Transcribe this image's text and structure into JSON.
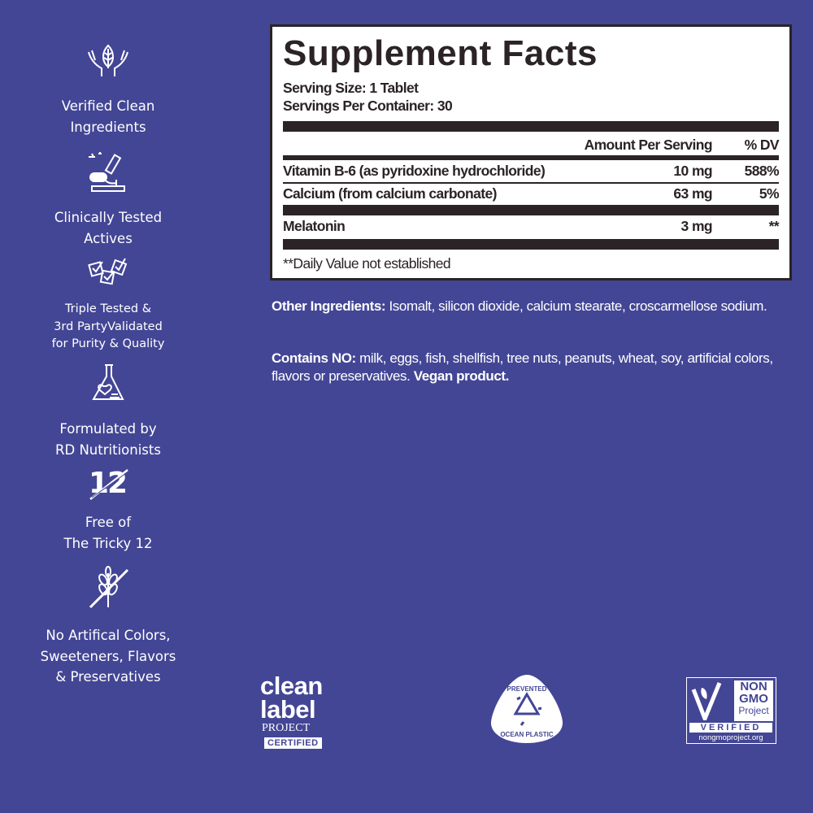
{
  "colors": {
    "background": "#434695",
    "panel_text": "#2b2325"
  },
  "sidebar": {
    "items": [
      {
        "icon": "hands-leaf-icon",
        "lines": [
          "Verified Clean",
          "Ingredients"
        ]
      },
      {
        "icon": "microscope-icon",
        "lines": [
          "Clinically Tested",
          "Actives"
        ]
      },
      {
        "icon": "checked-boxes-icon",
        "lines": [
          "Triple Tested &",
          "3rd PartyValidated",
          "for Purity & Quality"
        ]
      },
      {
        "icon": "heart-flask-icon",
        "lines": [
          "Formulated by",
          "RD Nutritionists"
        ]
      },
      {
        "icon": "crossed-12-icon",
        "glyph": "12",
        "lines": [
          "Free of",
          "The Tricky 12"
        ]
      },
      {
        "icon": "crossed-wheat-icon",
        "lines": [
          "No Artifical Colors,",
          "Sweeteners, Flavors",
          "& Preservatives"
        ]
      }
    ]
  },
  "facts": {
    "title": "Supplement Facts",
    "serving_size": "Serving Size: 1 Tablet",
    "servings_per_container": "Servings Per Container: 30",
    "header_amount": "Amount Per Serving",
    "header_dv": "% DV",
    "rows": [
      {
        "name": "Vitamin B-6 (as pyridoxine hydrochloride)",
        "amount": "10 mg",
        "dv": "588%"
      },
      {
        "name": "Calcium (from calcium carbonate)",
        "amount": "63 mg",
        "dv": "5%"
      },
      {
        "name": "Melatonin",
        "amount": "3 mg",
        "dv": "**"
      }
    ],
    "footnote": "**Daily Value not established"
  },
  "other_ingredients": {
    "label": "Other Ingredients:",
    "text": " Isomalt, silicon dioxide, calcium stearate, croscarmellose sodium."
  },
  "contains_no": {
    "label": "Contains NO:",
    "text": " milk, eggs, fish, shellfish, tree nuts, peanuts, wheat, soy, artificial colors, flavors or preservatives. ",
    "emphasis": "Vegan product."
  },
  "logos": {
    "clean_label": {
      "line1": "clean",
      "line2": "label",
      "line3": "PROJECT",
      "line4": "CERTIFIED"
    },
    "ocean": {
      "top": "PREVENTED",
      "bottom": "OCEAN PLASTIC"
    },
    "nongmo": {
      "line1": "NON",
      "line2": "GMO",
      "line3": "Project",
      "line4": "VERIFIED",
      "url": "nongmoproject.org"
    }
  }
}
